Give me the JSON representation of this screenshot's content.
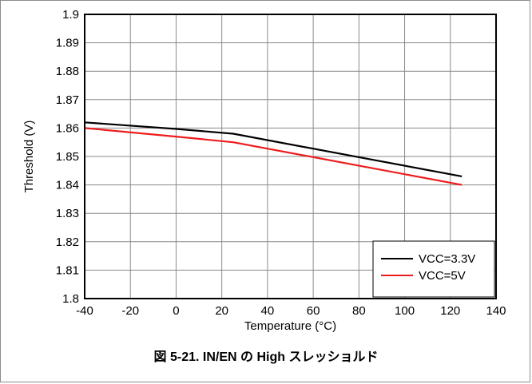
{
  "caption": "図 5-21. IN/EN の High スレッショルド",
  "chart_data": {
    "type": "line",
    "xlabel": "Temperature (°C)",
    "ylabel": "Threshold (V)",
    "xlim": [
      -40,
      140
    ],
    "ylim": [
      1.8,
      1.9
    ],
    "x_ticks": [
      "-40",
      "-20",
      "0",
      "20",
      "40",
      "60",
      "80",
      "100",
      "120",
      "140"
    ],
    "y_ticks": [
      "1.8",
      "1.81",
      "1.82",
      "1.83",
      "1.84",
      "1.85",
      "1.86",
      "1.87",
      "1.88",
      "1.89",
      "1.9"
    ],
    "x_tick_values": [
      -40,
      -20,
      0,
      20,
      40,
      60,
      80,
      100,
      120,
      140
    ],
    "y_tick_values": [
      1.8,
      1.81,
      1.82,
      1.83,
      1.84,
      1.85,
      1.86,
      1.87,
      1.88,
      1.89,
      1.9
    ],
    "grid": true,
    "legend_position": "bottom-right",
    "series": [
      {
        "name": "VCC=3.3V",
        "color": "#000000",
        "x": [
          -40,
          0,
          25,
          85,
          125
        ],
        "y": [
          1.862,
          1.8597,
          1.858,
          1.849,
          1.843
        ]
      },
      {
        "name": "VCC=5V",
        "color": "#ee1c1c",
        "x": [
          -40,
          0,
          25,
          85,
          125
        ],
        "y": [
          1.86,
          1.857,
          1.855,
          1.846,
          1.84
        ]
      }
    ]
  }
}
